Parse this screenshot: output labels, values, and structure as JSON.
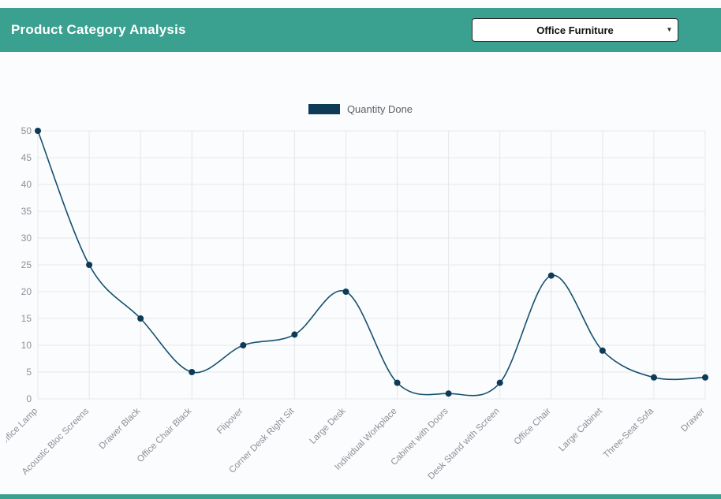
{
  "header": {
    "title": "Product Category Analysis",
    "dropdown": {
      "value": "Office Furniture",
      "caret_icon": "▾"
    }
  },
  "legend": {
    "label": "Quantity Done"
  },
  "colors": {
    "header_bg": "#3aa08f",
    "line": "#14506e",
    "point": "#0d3a57",
    "legend_swatch": "#0d3a57",
    "grid": "#e4e7ea",
    "axis_text": "#8b9097"
  },
  "chart_data": {
    "type": "line",
    "title": "Product Category Analysis",
    "xlabel": "",
    "ylabel": "",
    "categories": [
      "Office Lamp",
      "Acoustic Bloc Screens",
      "Drawer Black",
      "Office Chair Black",
      "Flipover",
      "Corner Desk Right Sit",
      "Large Desk",
      "Individual Workplace",
      "Cabinet with Doors",
      "Desk Stand with Screen",
      "Office Chair",
      "Large Cabinet",
      "Three-Seat Sofa",
      "Drawer"
    ],
    "series": [
      {
        "name": "Quantity Done",
        "values": [
          50,
          25,
          15,
          5,
          10,
          12,
          20,
          3,
          1,
          3,
          23,
          9,
          4,
          4
        ]
      }
    ],
    "ylim": [
      0,
      50
    ],
    "ytick_step": 5,
    "grid": true,
    "legend_position": "top",
    "curve": "smooth"
  }
}
